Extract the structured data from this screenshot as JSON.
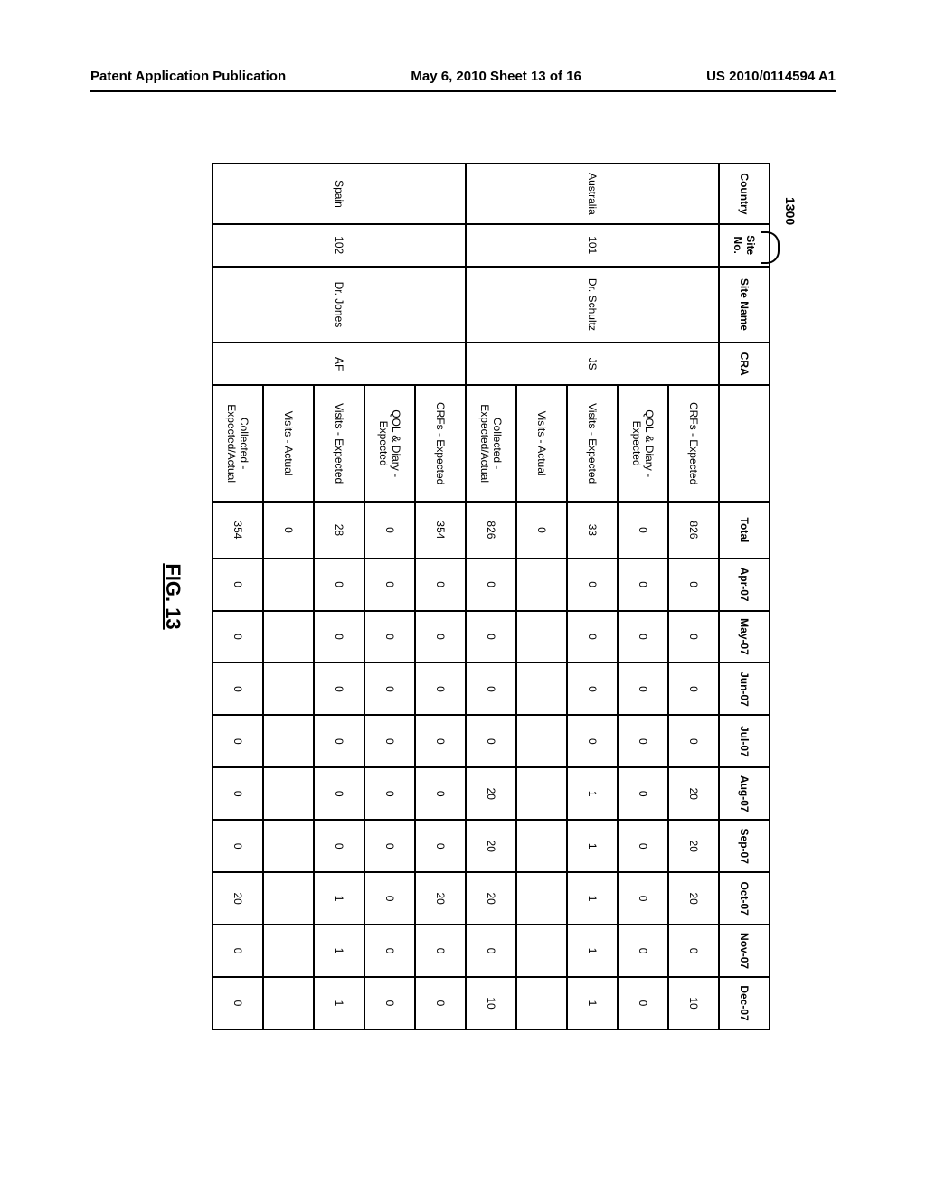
{
  "header": {
    "left": "Patent Application Publication",
    "center": "May 6, 2010  Sheet 13 of 16",
    "right": "US 2010/0114594 A1"
  },
  "figure": {
    "ref_number": "1300",
    "caption": "FIG. 13"
  },
  "table": {
    "months": [
      "Apr-07",
      "May-07",
      "Jun-07",
      "Jul-07",
      "Aug-07",
      "Sep-07",
      "Oct-07",
      "Nov-07",
      "Dec-07"
    ],
    "col_headers": {
      "country": "Country",
      "site_no": "Site No.",
      "site_name": "Site Name",
      "cra": "CRA",
      "total": "Total"
    },
    "sites": [
      {
        "country": "Australia",
        "site_no": "101",
        "site_name": "Dr. Schultz",
        "cra": "JS",
        "rows": [
          {
            "metric": "CRFs - Expected",
            "total": "826",
            "m": [
              "0",
              "0",
              "0",
              "0",
              "20",
              "20",
              "20",
              "0",
              "10"
            ]
          },
          {
            "metric": "QOL & Diary - Expected",
            "total": "0",
            "m": [
              "0",
              "0",
              "0",
              "0",
              "0",
              "0",
              "0",
              "0",
              "0"
            ]
          },
          {
            "metric": "Visits - Expected",
            "total": "33",
            "m": [
              "0",
              "0",
              "0",
              "0",
              "1",
              "1",
              "1",
              "1",
              "1"
            ]
          },
          {
            "metric": "Visits - Actual",
            "total": "0",
            "m": [
              "",
              "",
              "",
              "",
              "",
              "",
              "",
              "",
              ""
            ]
          },
          {
            "metric": "Collected - Expected/Actual",
            "total": "826",
            "m": [
              "0",
              "0",
              "0",
              "0",
              "20",
              "20",
              "20",
              "0",
              "10"
            ]
          }
        ]
      },
      {
        "country": "Spain",
        "site_no": "102",
        "site_name": "Dr. Jones",
        "cra": "AF",
        "rows": [
          {
            "metric": "CRFs - Expected",
            "total": "354",
            "m": [
              "0",
              "0",
              "0",
              "0",
              "0",
              "0",
              "20",
              "0",
              "0"
            ]
          },
          {
            "metric": "QOL & Diary - Expected",
            "total": "0",
            "m": [
              "0",
              "0",
              "0",
              "0",
              "0",
              "0",
              "0",
              "0",
              "0"
            ]
          },
          {
            "metric": "Visits - Expected",
            "total": "28",
            "m": [
              "0",
              "0",
              "0",
              "0",
              "0",
              "0",
              "1",
              "1",
              "1"
            ]
          },
          {
            "metric": "Visits - Actual",
            "total": "0",
            "m": [
              "",
              "",
              "",
              "",
              "",
              "",
              "",
              "",
              ""
            ]
          },
          {
            "metric": "Collected - Expected/Actual",
            "total": "354",
            "m": [
              "0",
              "0",
              "0",
              "0",
              "0",
              "0",
              "20",
              "0",
              "0"
            ]
          }
        ]
      }
    ]
  }
}
